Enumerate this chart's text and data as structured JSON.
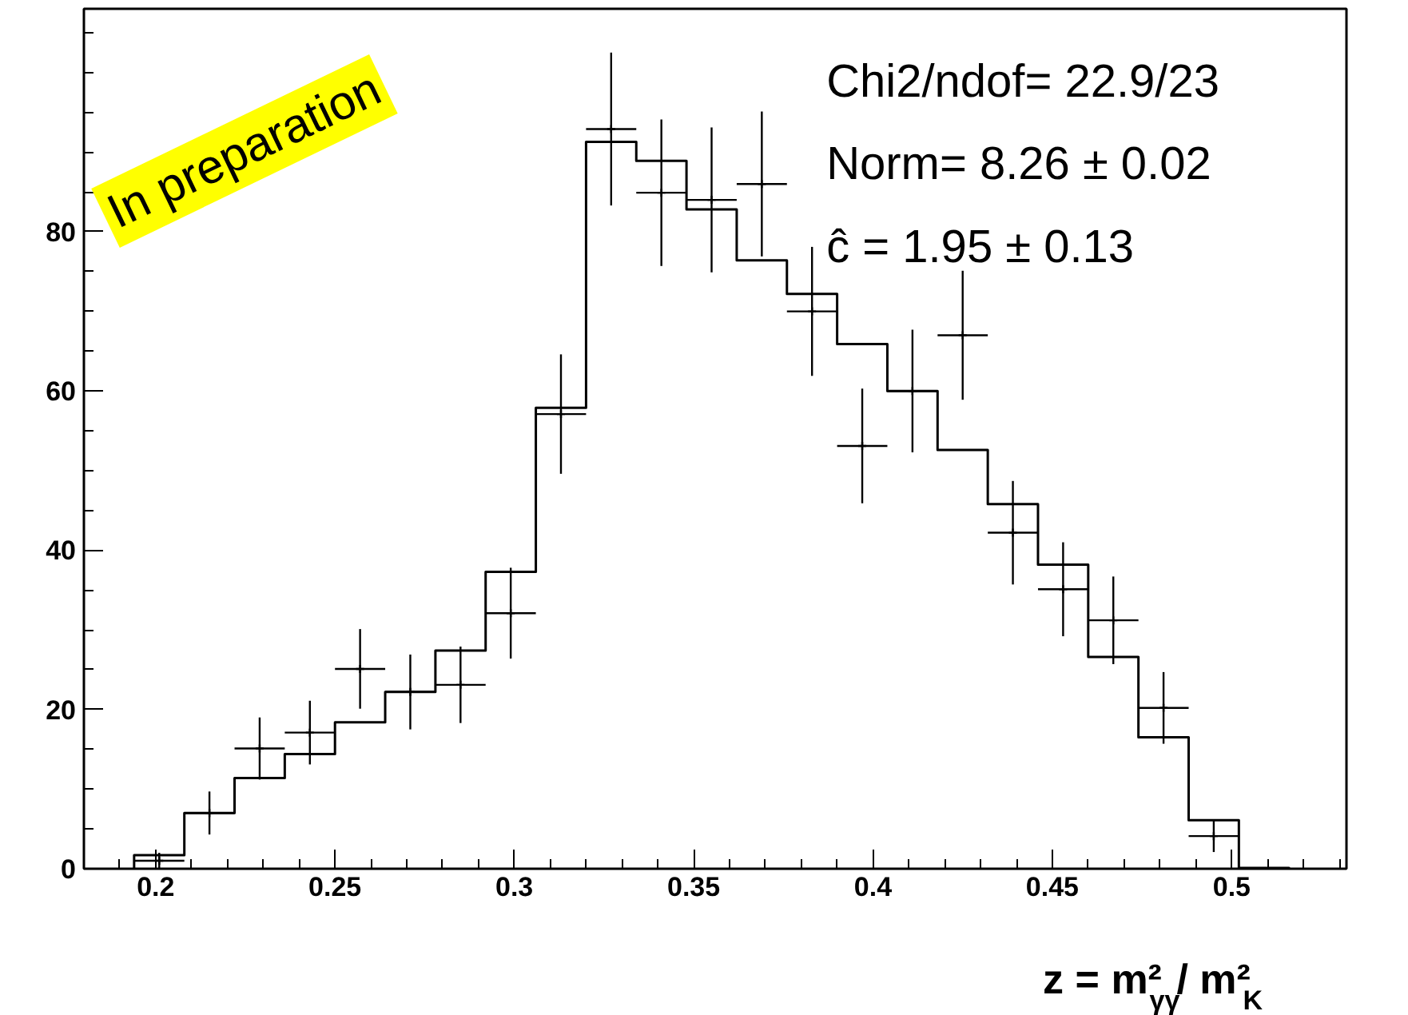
{
  "chart_data": {
    "type": "histogram",
    "xlabel": "z = m²$_{γγ}$/ m²$_{K}$",
    "xlim": [
      0.18,
      0.532
    ],
    "ylim": [
      0,
      108
    ],
    "xticks": [
      0.2,
      0.25,
      0.3,
      0.35,
      0.4,
      0.45,
      0.5
    ],
    "yticks": [
      0,
      20,
      40,
      60,
      80
    ],
    "grid": false,
    "annotations": [
      "Chi2/ndof= 22.9/23",
      "Norm= 8.26 ± 0.02",
      "ĉ = 1.95 ± 0.13",
      "In preparation"
    ],
    "series": [
      {
        "color": "#000000",
        "bins": [
          0.194,
          0.208,
          0.222,
          0.236,
          0.25,
          0.264,
          0.278,
          0.292,
          0.306,
          0.32,
          0.334,
          0.348,
          0.362,
          0.376,
          0.39,
          0.404,
          0.418,
          0.432,
          0.446,
          0.46,
          0.474,
          0.488,
          0.502,
          0.516
        ],
        "values": [
          1.7,
          7.0,
          11.4,
          14.4,
          18.4,
          22.2,
          27.4,
          37.3,
          57.9,
          91.3,
          88.9,
          82.8,
          76.4,
          72.2,
          65.9,
          60.0,
          52.6,
          45.8,
          38.2,
          26.6,
          16.5,
          6.1,
          0.1
        ]
      },
      {
        "type": "scatter",
        "color": "#000000",
        "marker": "cross",
        "x": [
          0.201,
          0.215,
          0.229,
          0.243,
          0.257,
          0.271,
          0.285,
          0.299,
          0.313,
          0.327,
          0.341,
          0.355,
          0.369,
          0.383,
          0.397,
          0.411,
          0.425,
          0.439,
          0.453,
          0.467,
          0.481,
          0.495
        ],
        "values": [
          1,
          7.0,
          15.1,
          17.1,
          25.1,
          22.2,
          23.1,
          32.1,
          57.1,
          92.9,
          84.9,
          84.0,
          86.0,
          70.0,
          53.1,
          60.0,
          67.0,
          42.2,
          35.1,
          31.2,
          20.2,
          4.1
        ],
        "errors": [
          1,
          2.7,
          3.9,
          4.0,
          5.0,
          4.7,
          4.8,
          5.7,
          7.5,
          9.6,
          9.2,
          9.1,
          9.1,
          8.1,
          7.2,
          7.7,
          8.1,
          6.5,
          5.9,
          5.5,
          4.5,
          2.0
        ],
        "xerrors": [
          0.007,
          0.007,
          0.007,
          0.007,
          0.007,
          0.007,
          0.007,
          0.007,
          0.007,
          0.007,
          0.007,
          0.007,
          0.007,
          0.007,
          0.007,
          0.007,
          0.007,
          0.007,
          0.007,
          0.007,
          0.007,
          0.007
        ]
      }
    ]
  }
}
